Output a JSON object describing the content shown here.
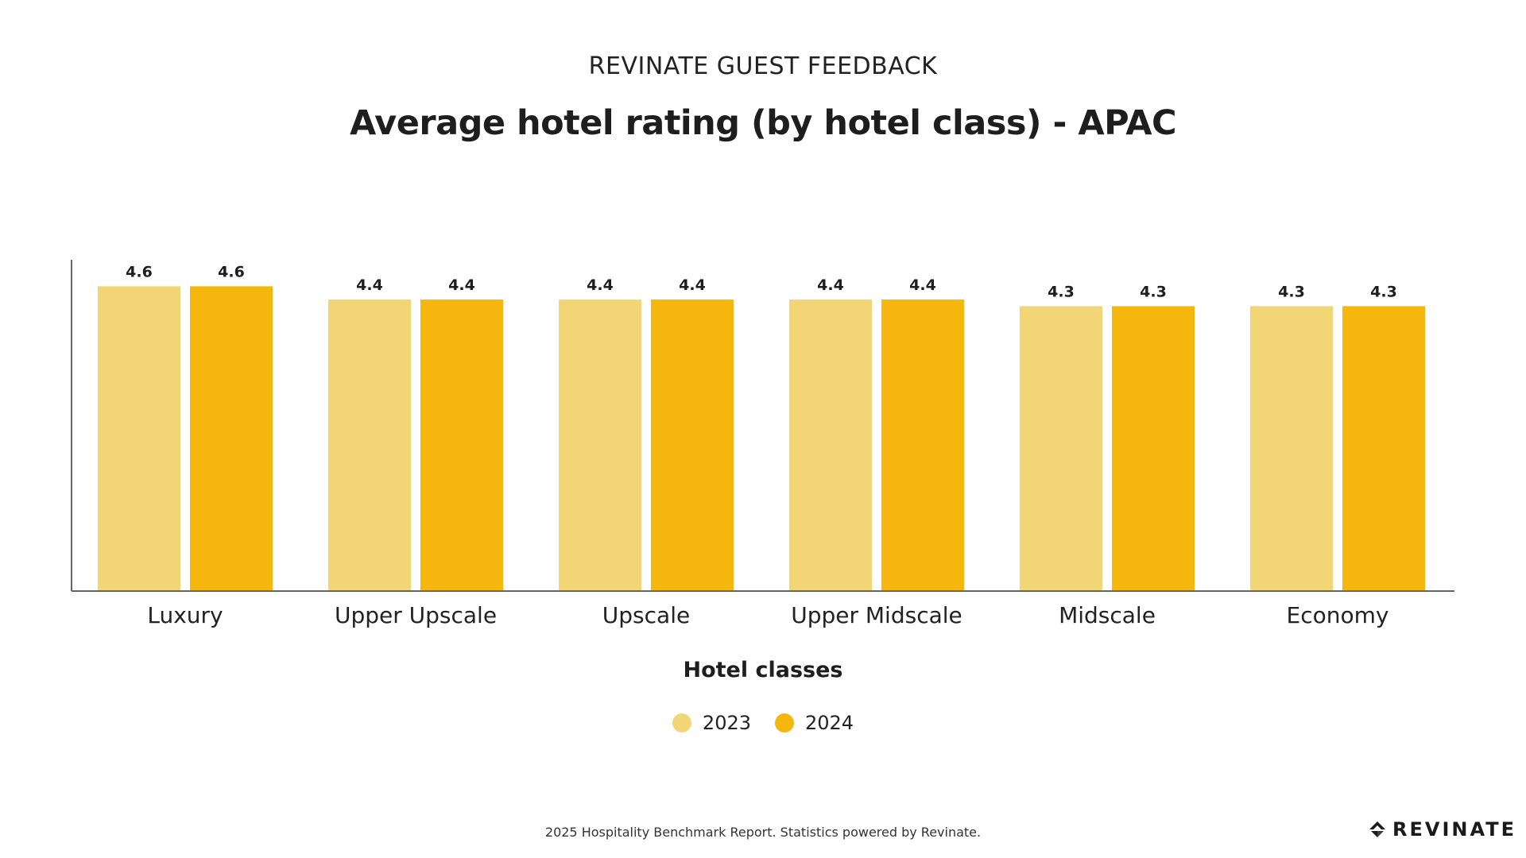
{
  "header": {
    "eyebrow": "REVINATE GUEST FEEDBACK",
    "title": "Average hotel rating (by hotel class) - APAC"
  },
  "chart_data": {
    "type": "bar",
    "categories": [
      "Luxury",
      "Upper Upscale",
      "Upscale",
      "Upper Midscale",
      "Midscale",
      "Economy"
    ],
    "series": [
      {
        "name": "2023",
        "values": [
          4.6,
          4.4,
          4.4,
          4.4,
          4.3,
          4.3
        ],
        "color": "#F2D574"
      },
      {
        "name": "2024",
        "values": [
          4.6,
          4.4,
          4.4,
          4.4,
          4.3,
          4.3
        ],
        "color": "#F5B70E"
      }
    ],
    "xlabel": "Hotel classes",
    "ylabel": "",
    "ylim": [
      0,
      5
    ],
    "data_labels": true,
    "grid": false,
    "legend_position": "bottom-center"
  },
  "footer": {
    "text": "2025 Hospitality Benchmark Report. Statistics powered by Revinate."
  },
  "logo": {
    "text": "REVINATE"
  }
}
